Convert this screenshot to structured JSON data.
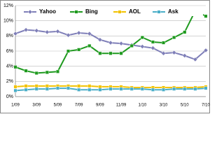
{
  "chart_data": {
    "type": "line",
    "categories": [
      "1/09",
      null,
      "3/09",
      null,
      "5/09",
      null,
      "7/09",
      null,
      "9/09",
      null,
      "11/09",
      null,
      "1/10",
      null,
      "3/10",
      null,
      "5/10",
      null,
      "7/10"
    ],
    "series": [
      {
        "name": "Yahoo",
        "color": "#7f7fb8",
        "marker": "diamond",
        "values": [
          8.3,
          8.8,
          8.7,
          8.5,
          8.6,
          8.1,
          8.4,
          8.3,
          7.5,
          7.1,
          7.0,
          6.8,
          6.6,
          6.4,
          5.7,
          5.8,
          5.4,
          4.9,
          6.1
        ]
      },
      {
        "name": "Bing",
        "color": "#1f9a1f",
        "marker": "square",
        "values": [
          3.9,
          3.4,
          3.1,
          3.2,
          3.3,
          6.0,
          6.2,
          6.7,
          5.7,
          5.7,
          5.7,
          6.7,
          7.8,
          7.2,
          7.1,
          7.8,
          8.5,
          11.3,
          10.6
        ]
      },
      {
        "name": "AOL",
        "color": "#f2c200",
        "marker": "square",
        "values": [
          1.3,
          1.4,
          1.4,
          1.4,
          1.4,
          1.4,
          1.4,
          1.4,
          1.3,
          1.3,
          1.3,
          1.2,
          1.2,
          1.2,
          1.2,
          1.2,
          1.2,
          1.2,
          1.3
        ]
      },
      {
        "name": "Ask",
        "color": "#4aaec8",
        "marker": "square",
        "values": [
          0.8,
          0.9,
          1.0,
          1.0,
          1.1,
          1.1,
          0.9,
          0.9,
          0.9,
          1.0,
          1.0,
          1.0,
          1.0,
          0.9,
          0.9,
          1.0,
          1.0,
          1.0,
          1.1
        ]
      }
    ],
    "ylim": [
      0,
      12
    ],
    "yticks": [
      {
        "value": 0,
        "label": "0%"
      },
      {
        "value": 2,
        "label": "2%"
      },
      {
        "value": 4,
        "label": "4%"
      },
      {
        "value": 6,
        "label": "6%"
      },
      {
        "value": 8,
        "label": "8%"
      },
      {
        "value": 10,
        "label": "10%"
      },
      {
        "value": 12,
        "label": "12%"
      }
    ],
    "grid": true,
    "legend": "top"
  }
}
